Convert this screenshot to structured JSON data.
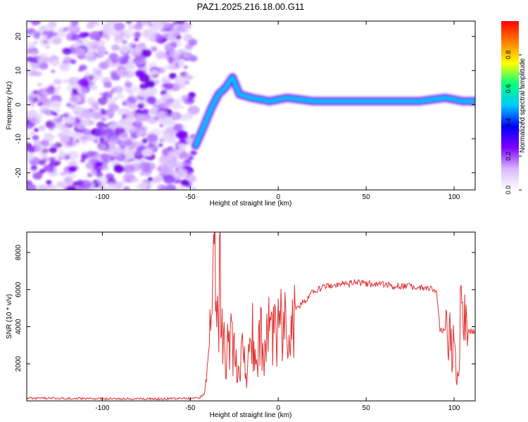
{
  "figure_title": "PAZ1.2025.216.18.00.G11",
  "chart_data": [
    {
      "type": "heatmap",
      "title": "PAZ1.2025.216.18.00.G11",
      "xlabel": "Height of straight line (km)",
      "ylabel": "Frequency (Hz)",
      "xlim": [
        -143,
        112
      ],
      "ylim": [
        -25,
        24.5
      ],
      "xticks": [
        -100,
        -50,
        0,
        50,
        100
      ],
      "yticks": [
        -20,
        -10,
        0,
        10,
        20
      ],
      "colorbar": {
        "label": "Normalized spectral amplitude",
        "range": [
          0,
          1
        ],
        "ticks": [
          "0.0",
          "0.2",
          "0.4",
          "0.6",
          "0.8"
        ],
        "colors": [
          "#ffffff",
          "#d9b8ff",
          "#8000ff",
          "#0000ff",
          "#00c8ff",
          "#00ff80",
          "#ffff00",
          "#ff8000",
          "#ff0000"
        ]
      },
      "features": {
        "noise_region_x": [
          -143,
          -48
        ],
        "signal_track": [
          {
            "x": -47,
            "y": -12
          },
          {
            "x": -42,
            "y": -6
          },
          {
            "x": -38,
            "y": -1
          },
          {
            "x": -34,
            "y": 3
          },
          {
            "x": -30,
            "y": 5
          },
          {
            "x": -26,
            "y": 8
          },
          {
            "x": -22,
            "y": 3
          },
          {
            "x": -15,
            "y": 2
          },
          {
            "x": -5,
            "y": 1
          },
          {
            "x": 5,
            "y": 2
          },
          {
            "x": 20,
            "y": 1
          },
          {
            "x": 50,
            "y": 1
          },
          {
            "x": 80,
            "y": 1
          },
          {
            "x": 95,
            "y": 2
          },
          {
            "x": 105,
            "y": 1
          },
          {
            "x": 112,
            "y": 1
          }
        ],
        "core_band": {
          "x_start": -12,
          "x_end": 112,
          "y": 1,
          "peak_amplitude": 1.0
        }
      }
    },
    {
      "type": "line",
      "xlabel": "Height of straight line (km)",
      "ylabel": "SNR (10 * v/v)",
      "xlim": [
        -143,
        112
      ],
      "ylim": [
        0,
        9100
      ],
      "xticks": [
        -100,
        -50,
        0,
        50,
        100
      ],
      "yticks": [
        2000,
        4000,
        6000,
        8000
      ],
      "color": "#e03030",
      "series": [
        {
          "x": [
            -143,
            -100,
            -60,
            -45,
            -42,
            -40,
            -38,
            -36,
            -35,
            -33,
            -30,
            -28,
            -25,
            -22,
            -20,
            -18,
            -15,
            -12,
            -10,
            -8,
            -5,
            -2,
            0,
            5,
            10,
            15,
            20,
            25,
            30,
            35,
            40,
            45,
            50,
            55,
            60,
            65,
            70,
            75,
            80,
            85,
            90,
            92,
            95,
            98,
            100,
            102,
            104,
            106,
            108,
            110,
            112
          ],
          "y": [
            150,
            120,
            110,
            150,
            400,
            1800,
            5000,
            9100,
            3000,
            6500,
            2000,
            3500,
            2500,
            1000,
            3000,
            1200,
            3800,
            2000,
            3500,
            2800,
            3800,
            3400,
            4200,
            4600,
            4900,
            5400,
            5900,
            6100,
            6200,
            6300,
            6300,
            6400,
            6300,
            6300,
            6250,
            6200,
            6200,
            6150,
            6100,
            6050,
            6000,
            3900,
            3700,
            3800,
            2500,
            1200,
            4800,
            3800,
            3800,
            3750,
            3800
          ]
        }
      ]
    }
  ]
}
